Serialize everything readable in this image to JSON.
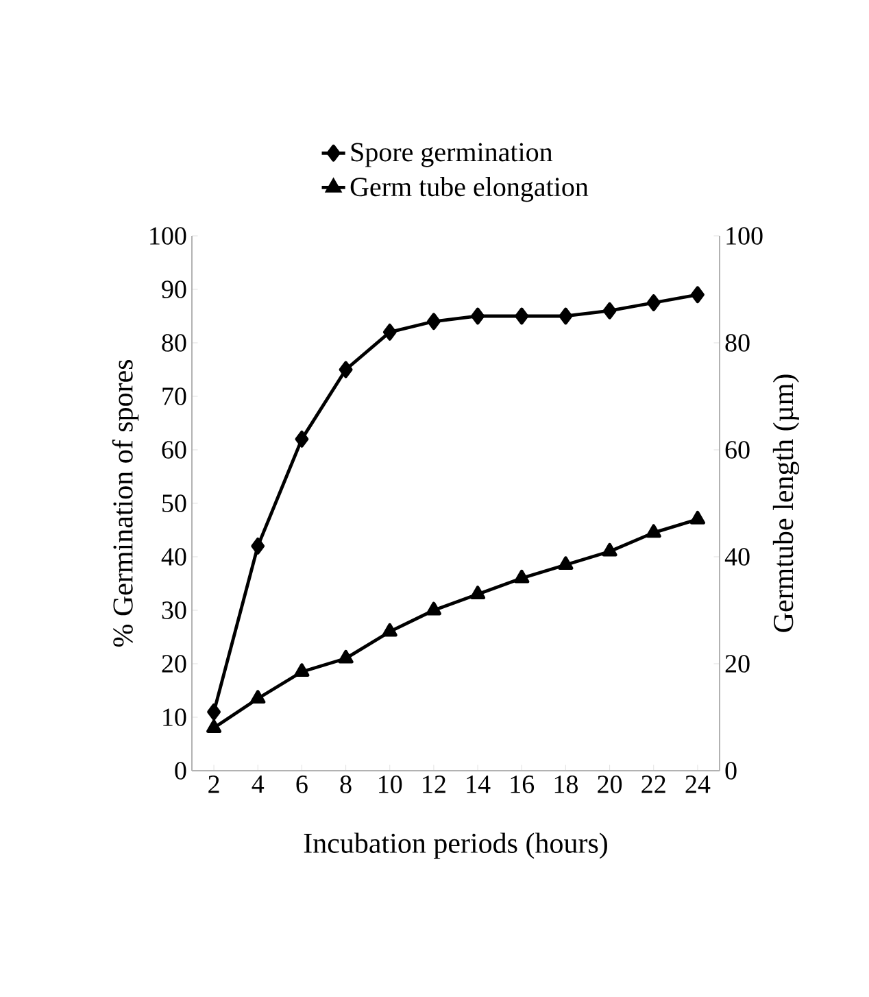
{
  "chart_data": {
    "type": "line",
    "xlabel": "Incubation periods (hours)",
    "ylabel": "% Germination of spores",
    "y2label": "Germtube length  (µm)",
    "categories": [
      "2",
      "4",
      "6",
      "8",
      "10",
      "12",
      "14",
      "16",
      "18",
      "20",
      "22",
      "24"
    ],
    "series": [
      {
        "name": "Spore germination",
        "color": "#000000",
        "marker": "diamond",
        "values": [
          11,
          42,
          62,
          75,
          82,
          84,
          85,
          85,
          85,
          86,
          87.5,
          89
        ]
      },
      {
        "name": "Germ tube elongation",
        "color": "#000000",
        "marker": "triangle",
        "axis": "y2",
        "values": [
          8,
          13.5,
          18.5,
          21,
          26,
          30,
          33,
          36,
          38.5,
          41,
          44.5,
          47
        ]
      }
    ],
    "ylim": [
      0,
      100
    ],
    "yticks": [
      0,
      10,
      20,
      30,
      40,
      50,
      60,
      70,
      80,
      90,
      100
    ],
    "y2lim": [
      0,
      100
    ],
    "y2ticks": [
      0,
      20,
      40,
      60,
      80,
      100
    ],
    "legend": "top",
    "grid": false,
    "line_style": "solid"
  }
}
